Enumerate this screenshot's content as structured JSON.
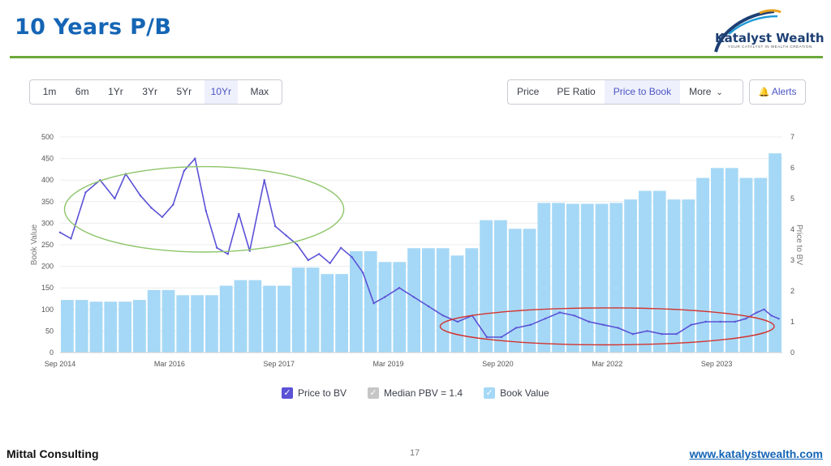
{
  "slide": {
    "title": "10 Years P/B",
    "logo_name": "Katalyst Wealth",
    "logo_tagline": "YOUR CATALYST IN WEALTH CREATION",
    "footer_left": "Mittal Consulting",
    "page_number": "17",
    "footer_link": "www.katalystwealth.com",
    "accent_color": "#1565b5",
    "rule_color": "#6aaa3b"
  },
  "toolbar": {
    "time_ranges": [
      "1m",
      "6m",
      "1Yr",
      "3Yr",
      "5Yr",
      "10Yr",
      "Max"
    ],
    "active_time_range": "10Yr",
    "views": [
      "Price",
      "PE Ratio",
      "Price to Book",
      "More"
    ],
    "active_view": "Price to Book",
    "alerts_label": "Alerts"
  },
  "chart_data": {
    "type": "bar+line",
    "xlabel": "",
    "x_ticks": [
      "Sep 2014",
      "Mar 2016",
      "Sep 2017",
      "Mar 2019",
      "Sep 2020",
      "Mar 2022",
      "Sep 2023"
    ],
    "y_left": {
      "label": "Book Value",
      "ticks": [
        0,
        50,
        100,
        150,
        200,
        250,
        300,
        350,
        400,
        450,
        500
      ],
      "range": [
        0,
        500
      ]
    },
    "y_right": {
      "label": "Price to BV",
      "ticks": [
        0,
        1,
        2,
        3,
        4,
        5,
        6,
        7
      ],
      "range": [
        0,
        7
      ]
    },
    "legend": [
      "Price to BV",
      "Median PBV = 1.4",
      "Book Value"
    ],
    "colors": {
      "line": "#5b52d6",
      "bars": "#a5d8f6",
      "median_box": "#c6c6c6",
      "green_ellipse": "#8dc56a",
      "red_ellipse": "#d3342f"
    },
    "book_value_series": {
      "name": "Book Value",
      "values": [
        122,
        122,
        118,
        118,
        118,
        122,
        145,
        145,
        133,
        133,
        133,
        155,
        168,
        168,
        155,
        155,
        197,
        197,
        182,
        182,
        235,
        235,
        210,
        210,
        242,
        242,
        242,
        225,
        242,
        307,
        307,
        287,
        287,
        347,
        347,
        345,
        345,
        345,
        347,
        355,
        375,
        375,
        355,
        355,
        405,
        428,
        428,
        405,
        405,
        462
      ]
    },
    "pbv_series": {
      "name": "Price to BV",
      "x": [
        2014.7,
        2014.85,
        2015.05,
        2015.25,
        2015.45,
        2015.6,
        2015.8,
        2015.95,
        2016.1,
        2016.25,
        2016.4,
        2016.55,
        2016.7,
        2016.85,
        2017.0,
        2017.15,
        2017.3,
        2017.5,
        2017.65,
        2017.8,
        2017.95,
        2018.1,
        2018.25,
        2018.4,
        2018.55,
        2018.7,
        2018.85,
        2019.0,
        2019.15,
        2019.35,
        2019.55,
        2019.75,
        2019.95,
        2020.15,
        2020.35,
        2020.55,
        2020.75,
        2020.95,
        2021.15,
        2021.35,
        2021.55,
        2021.75,
        2021.95,
        2022.15,
        2022.35,
        2022.55,
        2022.75,
        2022.95,
        2023.15,
        2023.35,
        2023.55,
        2023.75,
        2023.95,
        2024.1,
        2024.25,
        2024.35,
        2024.45,
        2024.55
      ],
      "values": [
        3.9,
        3.7,
        5.2,
        5.6,
        5.0,
        5.8,
        5.1,
        4.7,
        4.4,
        4.8,
        5.9,
        6.3,
        4.6,
        3.4,
        3.2,
        4.5,
        3.3,
        5.6,
        4.1,
        3.8,
        3.5,
        3.0,
        3.2,
        2.9,
        3.4,
        3.1,
        2.6,
        1.6,
        1.8,
        2.1,
        1.8,
        1.5,
        1.2,
        1.0,
        1.2,
        0.5,
        0.5,
        0.8,
        0.9,
        1.1,
        1.3,
        1.2,
        1.0,
        0.9,
        0.8,
        0.6,
        0.7,
        0.6,
        0.6,
        0.9,
        1.0,
        1.0,
        1.0,
        1.1,
        1.3,
        1.4,
        1.2,
        1.1
      ]
    },
    "annotations": [
      "green ellipse around 2015–2018 high P/B",
      "red ellipse around 2020–2024 low P/B"
    ]
  }
}
